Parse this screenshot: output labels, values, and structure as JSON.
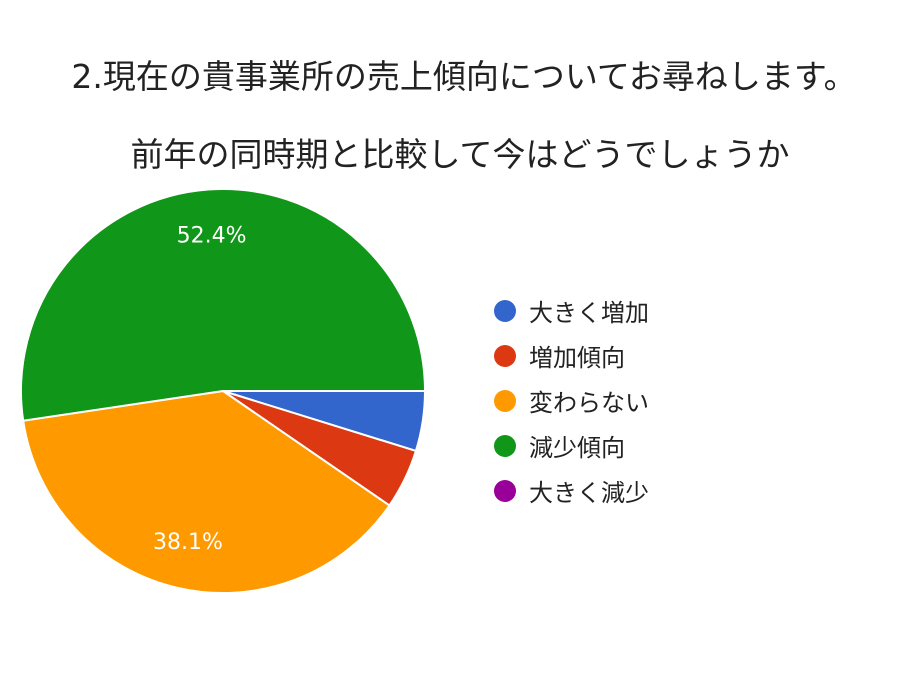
{
  "chart_data": {
    "type": "pie",
    "title_line1": "2.現在の貴事業所の売上傾向についてお尋ねします。",
    "title_line2": "前年の同時期と比較して今はどうでしょうか",
    "categories": [
      "大きく増加",
      "増加傾向",
      "変わらない",
      "減少傾向",
      "大きく減少"
    ],
    "values": [
      4.8,
      4.8,
      38.1,
      52.4,
      0
    ],
    "colors": [
      "#3366cc",
      "#dc3912",
      "#ff9900",
      "#109618",
      "#990099"
    ],
    "data_labels": [
      "",
      "",
      "38.1%",
      "52.4%",
      ""
    ],
    "legend_position": "right"
  }
}
